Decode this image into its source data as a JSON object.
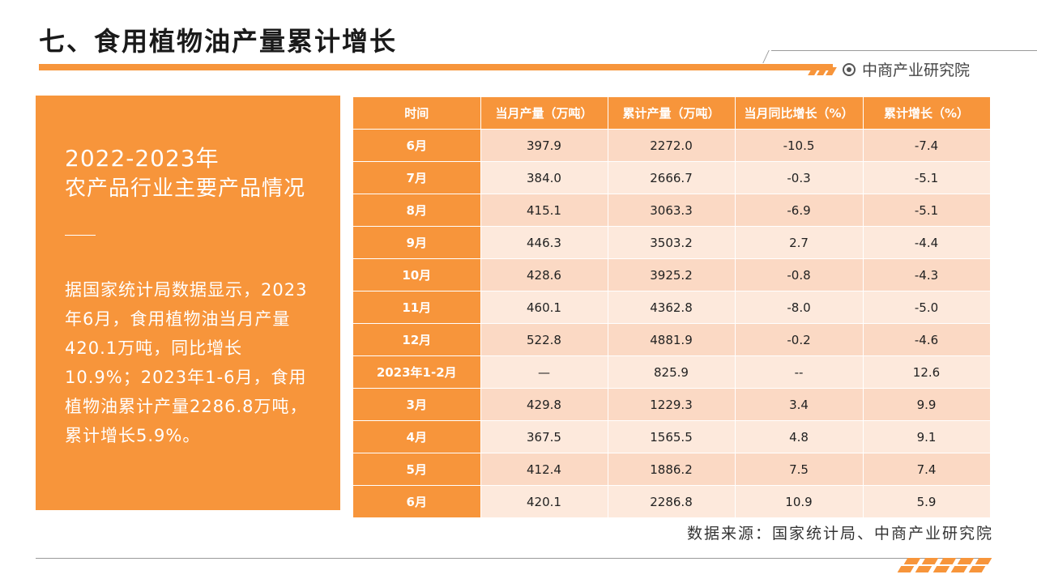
{
  "title": "七、食用植物油产量累计增长",
  "brand": "中商产业研究院",
  "panel": {
    "year": "2022-2023年",
    "subtitle": "农产品行业主要产品情况",
    "body": "据国家统计局数据显示，2023年6月，食用植物油当月产量420.1万吨，同比增长10.9%；2023年1-6月，食用植物油累计产量2286.8万吨，累计增长5.9%。"
  },
  "table": {
    "headers": [
      "时间",
      "当月产量（万吨）",
      "累计产量（万吨）",
      "当月同比增长（%）",
      "累计增长（%）"
    ],
    "rows": [
      [
        "6月",
        "397.9",
        "2272.0",
        "-10.5",
        "-7.4"
      ],
      [
        "7月",
        "384.0",
        "2666.7",
        "-0.3",
        "-5.1"
      ],
      [
        "8月",
        "415.1",
        "3063.3",
        "-6.9",
        "-5.1"
      ],
      [
        "9月",
        "446.3",
        "3503.2",
        "2.7",
        "-4.4"
      ],
      [
        "10月",
        "428.6",
        "3925.2",
        "-0.8",
        "-4.3"
      ],
      [
        "11月",
        "460.1",
        "4362.8",
        "-8.0",
        "-5.0"
      ],
      [
        "12月",
        "522.8",
        "4881.9",
        "-0.2",
        "-4.6"
      ],
      [
        "2023年1-2月",
        "—",
        "825.9",
        "--",
        "12.6"
      ],
      [
        "3月",
        "429.8",
        "1229.3",
        "3.4",
        "9.9"
      ],
      [
        "4月",
        "367.5",
        "1565.5",
        "4.8",
        "9.1"
      ],
      [
        "5月",
        "412.4",
        "1886.2",
        "7.5",
        "7.4"
      ],
      [
        "6月",
        "420.1",
        "2286.8",
        "10.9",
        "5.9"
      ]
    ]
  },
  "source": "数据来源：国家统计局、中商产业研究院",
  "colors": {
    "accent": "#f7953b",
    "row_dark": "#fbd9c4",
    "row_light": "#fde9dc"
  }
}
